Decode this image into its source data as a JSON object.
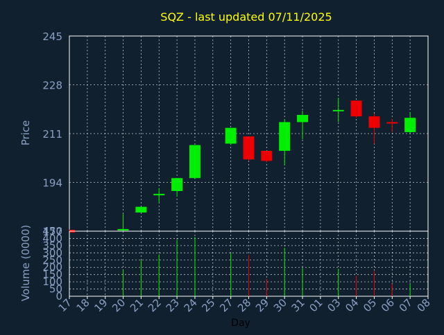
{
  "title": "SQZ - last updated 07/11/2025",
  "colors": {
    "background": "#10202f",
    "title": "#ffff00",
    "axis_text": "#8aa0c4",
    "frame": "#ffffff",
    "up": "#00ee00",
    "down": "#ee0000"
  },
  "chart_data": {
    "type": "candlestick",
    "title": "SQZ - last updated 07/11/2025",
    "xlabel": "Day",
    "price_panel": {
      "ylabel": "Price",
      "ylim": [
        177,
        245
      ],
      "yticks": [
        177,
        194,
        211,
        228,
        245
      ],
      "grid": true
    },
    "volume_panel": {
      "ylabel": "Volume (0000)",
      "ylim": [
        0,
        450
      ],
      "yticks": [
        0,
        50,
        100,
        150,
        200,
        250,
        300,
        350,
        400,
        450
      ],
      "grid": true
    },
    "x_tick_labels": [
      "17",
      "18",
      "19",
      "20",
      "21",
      "22",
      "23",
      "24",
      "25",
      "27",
      "28",
      "29",
      "30",
      "31",
      "01",
      "03",
      "04",
      "05",
      "06",
      "07",
      "08"
    ],
    "candles": [
      {
        "day": "17",
        "open": 177.5,
        "high": 177.5,
        "low": 176.5,
        "close": 176.5,
        "volume": 0
      },
      {
        "day": "20",
        "open": 177.5,
        "high": 183,
        "low": 177,
        "close": 177.5,
        "volume": 180
      },
      {
        "day": "21",
        "open": 183.5,
        "high": 185.5,
        "low": 183.5,
        "close": 185.5,
        "volume": 250
      },
      {
        "day": "22",
        "open": 189.5,
        "high": 192,
        "low": 187,
        "close": 190,
        "volume": 290
      },
      {
        "day": "23",
        "open": 191,
        "high": 195.5,
        "low": 189,
        "close": 195.5,
        "volume": 390
      },
      {
        "day": "24",
        "open": 195.5,
        "high": 207,
        "low": 195.5,
        "close": 207,
        "volume": 410
      },
      {
        "day": "27",
        "open": 207.5,
        "high": 213,
        "low": 207,
        "close": 213,
        "volume": 300
      },
      {
        "day": "28",
        "open": 210,
        "high": 210,
        "low": 201.5,
        "close": 202,
        "volume": 285
      },
      {
        "day": "29",
        "open": 205,
        "high": 205,
        "low": 201,
        "close": 201.5,
        "volume": 120
      },
      {
        "day": "30",
        "open": 205,
        "high": 216,
        "low": 200,
        "close": 215,
        "volume": 335
      },
      {
        "day": "31",
        "open": 215,
        "high": 219,
        "low": 209,
        "close": 217.5,
        "volume": 195
      },
      {
        "day": "03",
        "open": 219,
        "high": 223.5,
        "low": 215,
        "close": 219,
        "volume": 190
      },
      {
        "day": "04",
        "open": 222.5,
        "high": 222.5,
        "low": 216.5,
        "close": 217,
        "volume": 140
      },
      {
        "day": "05",
        "open": 217,
        "high": 218,
        "low": 207.5,
        "close": 213,
        "volume": 175
      },
      {
        "day": "06",
        "open": 215,
        "high": 216,
        "low": 211.5,
        "close": 214.5,
        "volume": 85
      },
      {
        "day": "07",
        "open": 211.5,
        "high": 218.5,
        "low": 211,
        "close": 216.5,
        "volume": 85
      }
    ]
  }
}
